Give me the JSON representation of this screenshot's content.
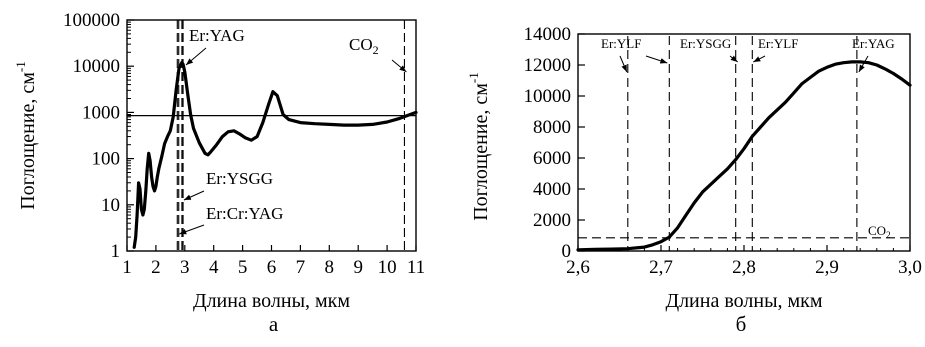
{
  "chart_data": [
    {
      "panel": "а",
      "type": "line",
      "xlabel": "Длина волны, мкм",
      "ylabel": "Поглощение, см",
      "ylabel_sup": "-1",
      "yscale": "log",
      "xlim": [
        1,
        11
      ],
      "ylim": [
        1,
        100000
      ],
      "xticks": [
        "1",
        "2",
        "3",
        "4",
        "5",
        "6",
        "7",
        "8",
        "9",
        "10",
        "11"
      ],
      "yticks": [
        "1",
        "10",
        "100",
        "1000",
        "10000",
        "100000"
      ],
      "series": [
        {
          "x": [
            1.25,
            1.3,
            1.35,
            1.4,
            1.45,
            1.5,
            1.55,
            1.6,
            1.65,
            1.7,
            1.75,
            1.8,
            1.85,
            1.9,
            1.95,
            2.0,
            2.05,
            2.1,
            2.2,
            2.3,
            2.4,
            2.5,
            2.6,
            2.7,
            2.8,
            2.9,
            2.94,
            3.0,
            3.1,
            3.2,
            3.3,
            3.5,
            3.7,
            3.8,
            3.9,
            4.1,
            4.3,
            4.5,
            4.7,
            4.9,
            5.1,
            5.3,
            5.5,
            5.7,
            5.9,
            6.05,
            6.2,
            6.4,
            6.6,
            7.0,
            7.5,
            8.0,
            8.5,
            9.0,
            9.5,
            10.0,
            10.4,
            10.8,
            11.0
          ],
          "y": [
            1.2,
            2.0,
            6.0,
            30,
            22,
            8,
            6,
            8,
            20,
            60,
            130,
            90,
            40,
            25,
            20,
            25,
            40,
            60,
            110,
            210,
            300,
            400,
            800,
            3000,
            9000,
            12000,
            11000,
            7500,
            2500,
            900,
            450,
            220,
            130,
            120,
            140,
            200,
            300,
            380,
            400,
            340,
            280,
            250,
            300,
            600,
            1500,
            2800,
            2300,
            900,
            700,
            600,
            570,
            550,
            530,
            530,
            550,
            620,
            730,
            900,
            1000
          ]
        }
      ],
      "hline": 850,
      "vlines": [
        2.74,
        2.79,
        2.9,
        2.94,
        10.6
      ],
      "annotations": [
        {
          "text": "Er:YAG",
          "x": 2.94
        },
        {
          "text": "CO",
          "sub": "2",
          "x": 10.6
        },
        {
          "text": "Er:YSGG",
          "x": 2.79
        },
        {
          "text": "Er:Cr:YAG",
          "x": 2.74
        }
      ]
    },
    {
      "panel": "б",
      "type": "line",
      "xlabel": "Длина волны, мкм",
      "ylabel": "Поглощение, см",
      "ylabel_sup": "-1",
      "yscale": "linear",
      "xlim": [
        2.6,
        3.0
      ],
      "ylim": [
        0,
        14000
      ],
      "xticks": [
        "2,6",
        "2,7",
        "2,8",
        "2,9",
        "3,0"
      ],
      "yticks": [
        "0",
        "2000",
        "4000",
        "6000",
        "8000",
        "10000",
        "12000",
        "14000"
      ],
      "series": [
        {
          "x": [
            2.6,
            2.62,
            2.64,
            2.66,
            2.68,
            2.69,
            2.7,
            2.71,
            2.72,
            2.73,
            2.74,
            2.75,
            2.76,
            2.77,
            2.78,
            2.79,
            2.8,
            2.81,
            2.82,
            2.83,
            2.84,
            2.85,
            2.86,
            2.87,
            2.88,
            2.89,
            2.9,
            2.91,
            2.92,
            2.93,
            2.94,
            2.95,
            2.96,
            2.97,
            2.98,
            2.99,
            3.0
          ],
          "y": [
            80,
            100,
            120,
            150,
            250,
            400,
            600,
            900,
            1500,
            2300,
            3100,
            3800,
            4300,
            4800,
            5300,
            5900,
            6600,
            7400,
            8000,
            8600,
            9100,
            9600,
            10200,
            10800,
            11200,
            11600,
            11850,
            12050,
            12150,
            12200,
            12200,
            12150,
            12000,
            11750,
            11450,
            11100,
            10700
          ]
        }
      ],
      "hline": 850,
      "vlines": [
        2.66,
        2.71,
        2.79,
        2.81,
        2.936
      ],
      "annotations": [
        {
          "text": "Er:YLF",
          "x": 2.66
        },
        {
          "text": "Er:YSGG",
          "x": 2.79
        },
        {
          "text": "Er:YLF",
          "x": 2.81
        },
        {
          "text": "Er:YAG",
          "x": 2.936
        },
        {
          "text": "CO",
          "sub": "2",
          "x": 2.95
        }
      ]
    }
  ]
}
